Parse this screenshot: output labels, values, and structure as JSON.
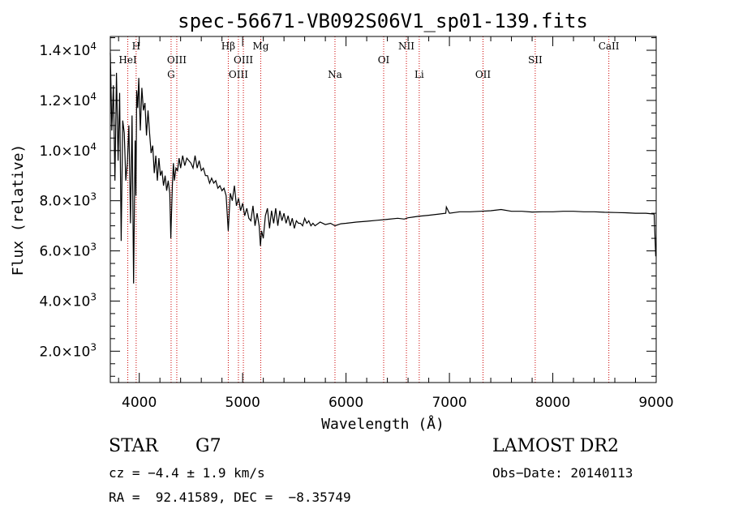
{
  "chart_data": {
    "type": "line",
    "title": "spec-56671-VB092S06V1_sp01-139.fits",
    "xlabel": "Wavelength (Å)",
    "ylabel": "Flux (relative)",
    "xlim": [
      3720,
      9000
    ],
    "ylim": [
      750,
      14550
    ],
    "x_ticks": [
      {
        "value": 4000,
        "label": "4000"
      },
      {
        "value": 5000,
        "label": "5000"
      },
      {
        "value": 6000,
        "label": "6000"
      },
      {
        "value": 7000,
        "label": "7000"
      },
      {
        "value": 8000,
        "label": "8000"
      },
      {
        "value": 9000,
        "label": "9000"
      }
    ],
    "y_ticks": [
      {
        "value": 2000,
        "mant": "2.0×10",
        "exp": "3"
      },
      {
        "value": 4000,
        "mant": "4.0×10",
        "exp": "3"
      },
      {
        "value": 6000,
        "mant": "6.0×10",
        "exp": "3"
      },
      {
        "value": 8000,
        "mant": "8.0×10",
        "exp": "3"
      },
      {
        "value": 10000,
        "mant": "1.0×10",
        "exp": "4"
      },
      {
        "value": 12000,
        "mant": "1.2×10",
        "exp": "4"
      },
      {
        "value": 14000,
        "mant": "1.4×10",
        "exp": "4"
      }
    ],
    "line_color": "#000000",
    "marker_color": "#cc0000",
    "spectrum": {
      "x": [
        3720,
        3735,
        3750,
        3765,
        3780,
        3795,
        3810,
        3825,
        3840,
        3855,
        3870,
        3885,
        3900,
        3915,
        3930,
        3945,
        3960,
        3968,
        3975,
        3985,
        3995,
        4010,
        4025,
        4040,
        4055,
        4070,
        4085,
        4100,
        4115,
        4130,
        4145,
        4160,
        4175,
        4190,
        4205,
        4220,
        4235,
        4250,
        4265,
        4280,
        4295,
        4305,
        4310,
        4320,
        4330,
        4340,
        4355,
        4370,
        4385,
        4400,
        4420,
        4440,
        4460,
        4480,
        4500,
        4520,
        4540,
        4560,
        4580,
        4600,
        4620,
        4640,
        4660,
        4680,
        4700,
        4720,
        4740,
        4760,
        4780,
        4800,
        4820,
        4840,
        4861,
        4880,
        4900,
        4920,
        4940,
        4960,
        4980,
        5000,
        5020,
        5040,
        5060,
        5080,
        5100,
        5120,
        5140,
        5160,
        5172,
        5183,
        5200,
        5220,
        5240,
        5260,
        5280,
        5300,
        5320,
        5340,
        5360,
        5380,
        5400,
        5420,
        5440,
        5460,
        5480,
        5500,
        5520,
        5540,
        5560,
        5580,
        5600,
        5620,
        5640,
        5660,
        5680,
        5700,
        5750,
        5800,
        5850,
        5893,
        5950,
        6000,
        6100,
        6200,
        6300,
        6400,
        6500,
        6563,
        6600,
        6700,
        6800,
        6900,
        6965,
        6970,
        7000,
        7100,
        7200,
        7300,
        7400,
        7500,
        7600,
        7700,
        7800,
        7900,
        8000,
        8100,
        8200,
        8300,
        8400,
        8500,
        8600,
        8700,
        8800,
        8900,
        8980,
        8995,
        9000
      ],
      "y": [
        13900,
        10800,
        12600,
        8800,
        13100,
        9600,
        12300,
        6400,
        11200,
        10700,
        8800,
        9500,
        11000,
        7100,
        11400,
        4700,
        10400,
        8200,
        12400,
        11700,
        12900,
        10800,
        12500,
        11600,
        11900,
        10600,
        11600,
        10700,
        9900,
        10200,
        9100,
        9800,
        8800,
        9700,
        9000,
        9200,
        8600,
        9000,
        8400,
        8800,
        8300,
        6500,
        7200,
        8600,
        9500,
        8800,
        9300,
        9200,
        9700,
        9300,
        9800,
        9400,
        9700,
        9600,
        9500,
        9300,
        9800,
        9300,
        9600,
        9200,
        9300,
        9000,
        9000,
        8700,
        8900,
        8700,
        8800,
        8500,
        8600,
        8400,
        8500,
        8200,
        6800,
        8300,
        8000,
        8600,
        7800,
        8100,
        7600,
        7900,
        7400,
        7700,
        7300,
        7200,
        7800,
        7000,
        7500,
        7000,
        6200,
        6800,
        6500,
        7400,
        7700,
        6900,
        7600,
        7100,
        7700,
        7000,
        7600,
        7200,
        7500,
        7100,
        7400,
        7000,
        7300,
        6900,
        7200,
        7100,
        7100,
        7000,
        7300,
        7100,
        7200,
        7000,
        7100,
        7000,
        7150,
        7050,
        7100,
        7000,
        7080,
        7100,
        7150,
        7180,
        7220,
        7260,
        7300,
        7270,
        7320,
        7380,
        7420,
        7470,
        7500,
        7750,
        7500,
        7560,
        7560,
        7580,
        7600,
        7650,
        7580,
        7580,
        7550,
        7560,
        7560,
        7580,
        7580,
        7560,
        7560,
        7540,
        7530,
        7520,
        7500,
        7500,
        7470,
        5800,
        5800
      ]
    },
    "lines": [
      {
        "name": "HeI",
        "x": 3889,
        "row": 3
      },
      {
        "name": "H",
        "x": 3970,
        "row": 1
      },
      {
        "name": "G",
        "x": 4308,
        "row": 4
      },
      {
        "name": "OIII",
        "x": 4363,
        "row": 3
      },
      {
        "name": "Hβ",
        "x": 4861,
        "row": 1
      },
      {
        "name": "OIII",
        "x": 4959,
        "row": 4
      },
      {
        "name": "OIII",
        "x": 5007,
        "row": 3
      },
      {
        "name": "Mg",
        "x": 5175,
        "row": 1
      },
      {
        "name": "Na",
        "x": 5893,
        "row": 4
      },
      {
        "name": "OI",
        "x": 6364,
        "row": 3
      },
      {
        "name": "NII",
        "x": 6584,
        "row": 1
      },
      {
        "name": "Li",
        "x": 6708,
        "row": 4
      },
      {
        "name": "OII",
        "x": 7325,
        "row": 4
      },
      {
        "name": "SII",
        "x": 7830,
        "row": 3
      },
      {
        "name": "CaII",
        "x": 8542,
        "row": 1
      }
    ]
  },
  "info": {
    "class": "STAR",
    "subclass": "G7",
    "cz": "cz = −4.4 ± 1.9 km/s",
    "radec": "RA =  92.41589, DEC =  −8.35749",
    "survey": "LAMOST DR2",
    "obsdate": "Obs−Date: 20140113"
  }
}
